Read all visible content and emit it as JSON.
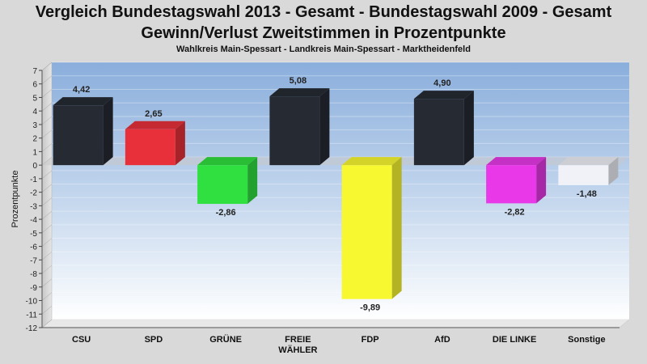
{
  "header": {
    "title_line1": "Vergleich Bundestagswahl 2013 - Gesamt - Bundestagswahl 2009 - Gesamt",
    "title_line2": "Gewinn/Verlust Zweitstimmen in Prozentpunkte",
    "subtitle": "Wahlkreis Main-Spessart - Landkreis Main-Spessart - Marktheidenfeld"
  },
  "chart_data": {
    "type": "bar",
    "title": "Vergleich Bundestagswahl 2013 - Gesamt - Bundestagswahl 2009 - Gesamt / Gewinn/Verlust Zweitstimmen in Prozentpunkte",
    "subtitle": "Wahlkreis Main-Spessart - Landkreis Main-Spessart - Marktheidenfeld",
    "xlabel": "",
    "ylabel": "Prozentpunkte",
    "ylim": [
      -12,
      7
    ],
    "yticks": [
      7,
      6,
      5,
      4,
      3,
      2,
      1,
      0,
      -1,
      -2,
      -3,
      -4,
      -5,
      -6,
      -7,
      -8,
      -9,
      -10,
      -11,
      -12
    ],
    "grid": true,
    "categories": [
      "CSU",
      "SPD",
      "GRÜNE",
      "FREIE WÄHLER",
      "FDP",
      "AfD",
      "DIE LINKE",
      "Sonstige"
    ],
    "category_labels": [
      [
        "CSU"
      ],
      [
        "SPD"
      ],
      [
        "GRÜNE"
      ],
      [
        "FREIE",
        "WÄHLER"
      ],
      [
        "FDP"
      ],
      [
        "AfD"
      ],
      [
        "DIE LINKE"
      ],
      [
        "Sonstige"
      ]
    ],
    "values": [
      4.42,
      2.65,
      -2.86,
      5.08,
      -9.89,
      4.9,
      -2.82,
      -1.48
    ],
    "value_labels": [
      "4,42",
      "2,65",
      "-2,86",
      "5,08",
      "-9,89",
      "4,90",
      "-2,82",
      "-1,48"
    ],
    "colors": [
      "#262a33",
      "#e8303a",
      "#30e040",
      "#262a33",
      "#f8f830",
      "#262a33",
      "#e838e8",
      "#f0f2f8"
    ]
  }
}
